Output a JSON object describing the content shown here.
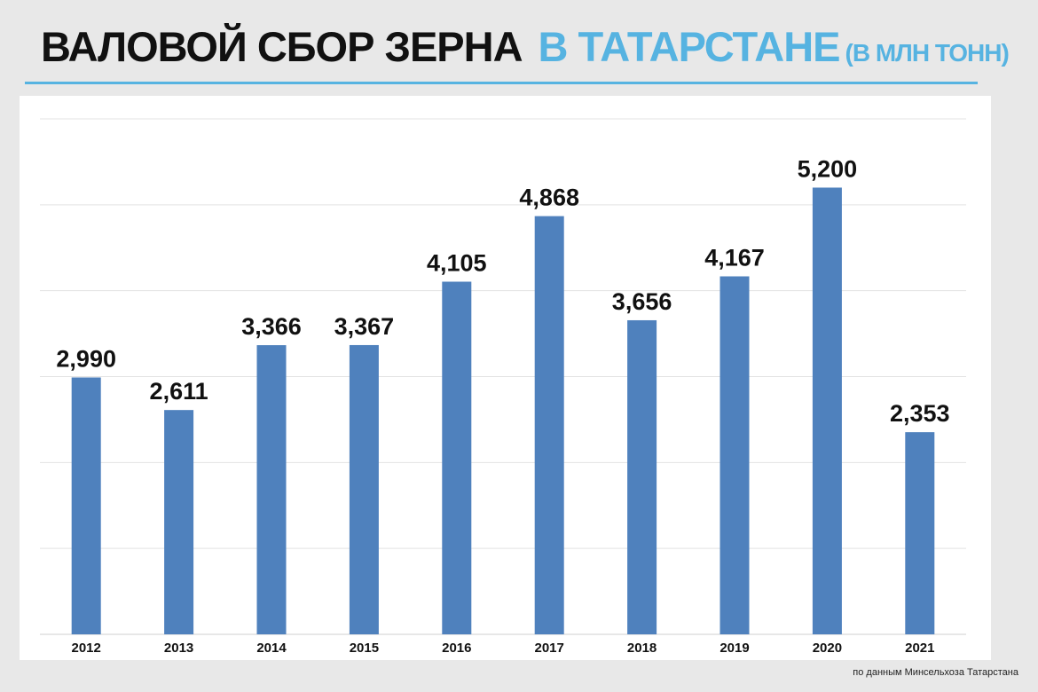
{
  "header": {
    "title_main": "ВАЛОВОЙ СБОР ЗЕРНА",
    "title_region": "В ТАТАРСТАНЕ",
    "title_unit": "(В МЛН ТОНН)"
  },
  "footnote": "по данным Минсельхоза Татарстана",
  "colors": {
    "bar": "#4f81bd",
    "accent": "#56b3e1",
    "grid": "#e3e3e3"
  },
  "chart_data": {
    "type": "bar",
    "categories": [
      "2012",
      "2013",
      "2014",
      "2015",
      "2016",
      "2017",
      "2018",
      "2019",
      "2020",
      "2021"
    ],
    "values": [
      2.99,
      2.611,
      3.366,
      3.367,
      4.105,
      4.868,
      3.656,
      4.167,
      5.2,
      2.353
    ],
    "value_labels": [
      "2,990",
      "2,611",
      "3,366",
      "3,367",
      "4,105",
      "4,868",
      "3,656",
      "4,167",
      "5,200",
      "2,353"
    ],
    "ylim": [
      0,
      6
    ],
    "grid": true,
    "legend": "none"
  }
}
